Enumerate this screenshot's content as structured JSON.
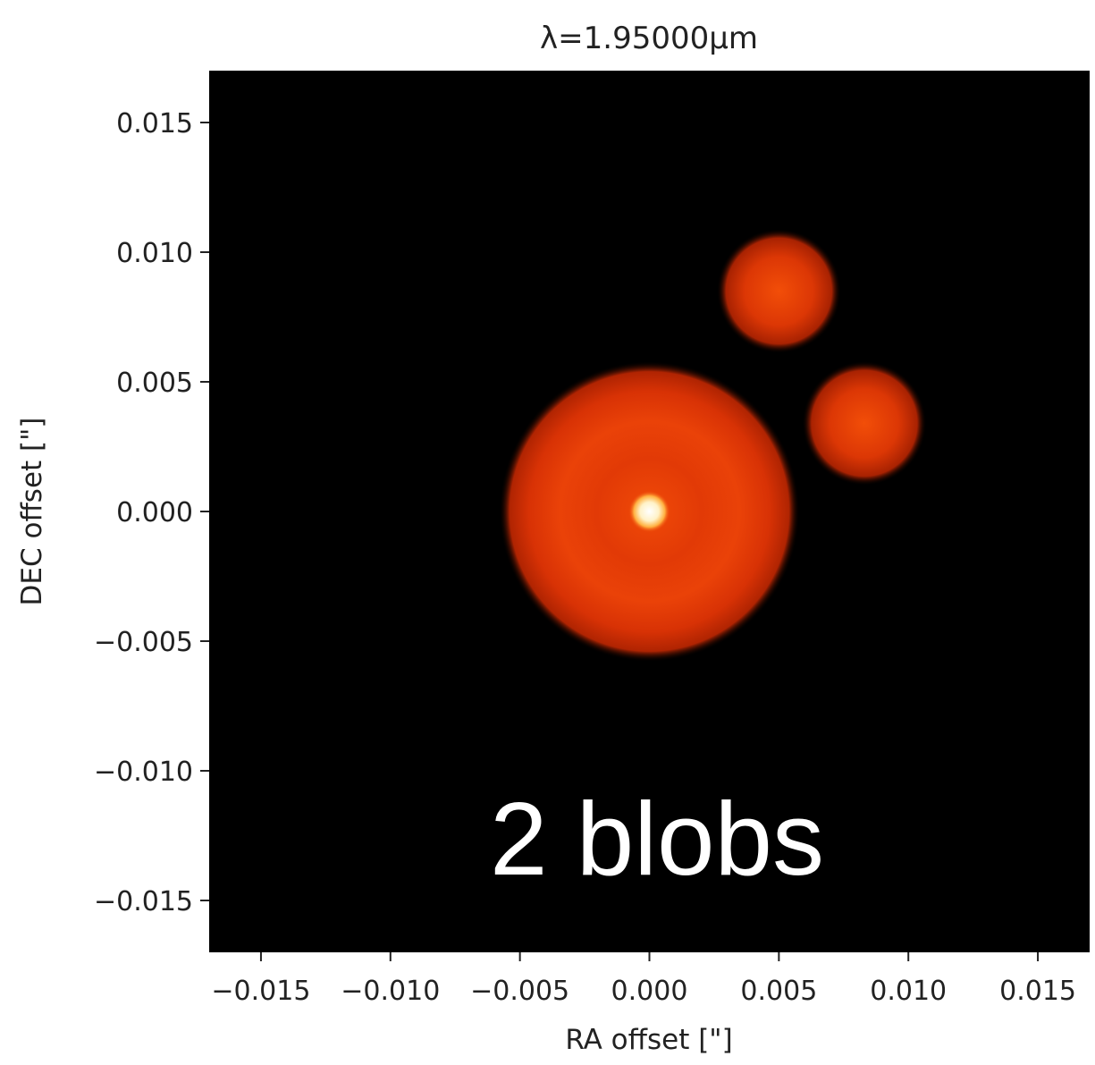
{
  "chart_data": {
    "type": "heatmap",
    "title": "λ=1.95000μm",
    "xlabel": "RA offset [\"]",
    "ylabel": "DEC offset [\"]",
    "xlim": [
      -0.017,
      0.017
    ],
    "ylim": [
      -0.017,
      0.017
    ],
    "xticks": [
      -0.015,
      -0.01,
      -0.005,
      0.0,
      0.005,
      0.01,
      0.015
    ],
    "yticks": [
      -0.015,
      -0.01,
      -0.005,
      0.0,
      0.005,
      0.01,
      0.015
    ],
    "xtick_labels": [
      "−0.015",
      "−0.010",
      "−0.005",
      "0.000",
      "0.005",
      "0.010",
      "0.015"
    ],
    "ytick_labels": [
      "−0.015",
      "−0.010",
      "−0.005",
      "0.000",
      "0.005",
      "0.010",
      "0.015"
    ],
    "colormap": "hot",
    "background_color": "#000000",
    "sources": [
      {
        "kind": "star",
        "x": 0.0,
        "y": 0.0,
        "radius": 0.0008,
        "color": "#ffffff"
      },
      {
        "kind": "disk",
        "x": 0.0,
        "y": 0.0,
        "radius": 0.0058,
        "color": "#e43a06"
      },
      {
        "kind": "blob",
        "x": 0.005,
        "y": 0.0085,
        "radius": 0.0024,
        "color": "#e33a06"
      },
      {
        "kind": "blob",
        "x": 0.0083,
        "y": 0.0034,
        "radius": 0.0024,
        "color": "#e33a06"
      }
    ],
    "annotations": [
      "2 blobs"
    ]
  }
}
